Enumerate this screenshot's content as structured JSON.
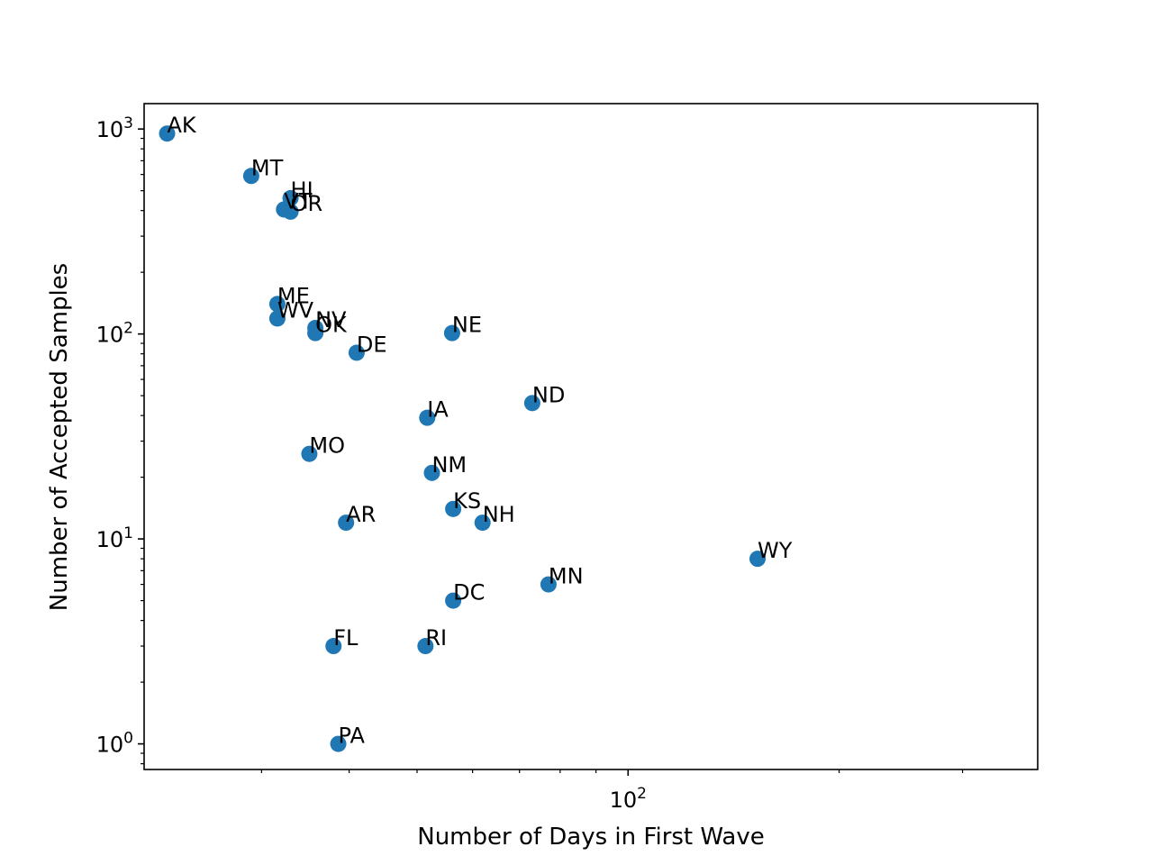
{
  "chart_data": {
    "type": "scatter",
    "xlabel": "Number of Days in First Wave",
    "ylabel": "Number of Accepted Samples",
    "xscale": "log",
    "yscale": "log",
    "xlim": [
      20.4,
      384
    ],
    "ylim": [
      0.75,
      1330
    ],
    "x_major_ticks": [
      {
        "value": 100,
        "base": "10",
        "exp": "2"
      }
    ],
    "x_minor_ticks": [
      30,
      40,
      50,
      60,
      70,
      80,
      90,
      200,
      300
    ],
    "y_major_ticks": [
      {
        "value": 1,
        "base": "10",
        "exp": "0"
      },
      {
        "value": 10,
        "base": "10",
        "exp": "1"
      },
      {
        "value": 100,
        "base": "10",
        "exp": "2"
      },
      {
        "value": 1000,
        "base": "10",
        "exp": "3"
      }
    ],
    "marker_color": "#1f77b4",
    "grid": false,
    "points": [
      {
        "label": "AK",
        "x": 22,
        "y": 950
      },
      {
        "label": "MT",
        "x": 29,
        "y": 590
      },
      {
        "label": "HI",
        "x": 33,
        "y": 460
      },
      {
        "label": "VT",
        "x": 32.3,
        "y": 405
      },
      {
        "label": "OR",
        "x": 33,
        "y": 395
      },
      {
        "label": "ME",
        "x": 31.6,
        "y": 140
      },
      {
        "label": "WV",
        "x": 31.6,
        "y": 119
      },
      {
        "label": "NV",
        "x": 35.8,
        "y": 107
      },
      {
        "label": "OK",
        "x": 35.8,
        "y": 101
      },
      {
        "label": "DE",
        "x": 41,
        "y": 81
      },
      {
        "label": "NE",
        "x": 56.1,
        "y": 101
      },
      {
        "label": "ND",
        "x": 73,
        "y": 46
      },
      {
        "label": "IA",
        "x": 51.7,
        "y": 39
      },
      {
        "label": "MO",
        "x": 35.1,
        "y": 26
      },
      {
        "label": "NM",
        "x": 52.5,
        "y": 21
      },
      {
        "label": "KS",
        "x": 56.3,
        "y": 14
      },
      {
        "label": "NH",
        "x": 62,
        "y": 12
      },
      {
        "label": "AR",
        "x": 39.6,
        "y": 12
      },
      {
        "label": "WY",
        "x": 153,
        "y": 8
      },
      {
        "label": "MN",
        "x": 77,
        "y": 6
      },
      {
        "label": "DC",
        "x": 56.3,
        "y": 5
      },
      {
        "label": "FL",
        "x": 38,
        "y": 3
      },
      {
        "label": "RI",
        "x": 51.4,
        "y": 3
      },
      {
        "label": "PA",
        "x": 38.6,
        "y": 1
      }
    ]
  }
}
